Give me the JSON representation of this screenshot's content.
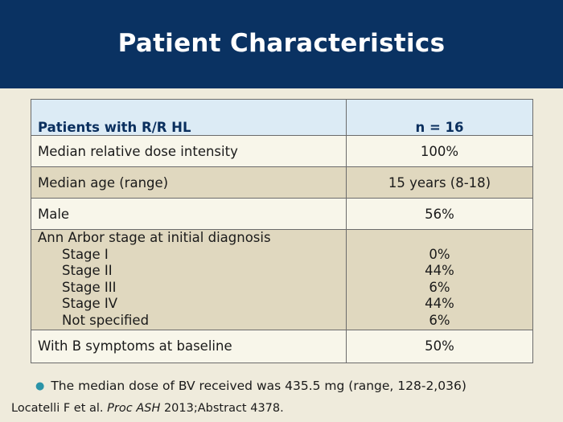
{
  "header": {
    "title": "Patient Characteristics"
  },
  "table": {
    "col_headers": [
      "Patients with R/R HL",
      "n = 16"
    ],
    "rows": [
      {
        "label": "Median relative dose intensity",
        "value": "100%"
      },
      {
        "label": "Median age (range)",
        "value": "15 years (8-18)"
      },
      {
        "label": "Male",
        "value": "56%"
      },
      {
        "label": "Ann Arbor stage at initial diagnosis",
        "subrows": [
          {
            "label": "Stage I",
            "value": "0%"
          },
          {
            "label": "Stage II",
            "value": "44%"
          },
          {
            "label": "Stage III",
            "value": "6%"
          },
          {
            "label": "Stage IV",
            "value": "44%"
          },
          {
            "label": "Not specified",
            "value": "6%"
          }
        ]
      },
      {
        "label": "With B symptoms at baseline",
        "value": "50%"
      }
    ]
  },
  "footnote": {
    "bullet": "The median dose of BV received was 435.5 mg (range, 128-2,036)",
    "citation_authors": "Locatelli F et al.",
    "citation_journal": "Proc ASH",
    "citation_rest": "2013;Abstract 4378."
  },
  "colors": {
    "header_bg": "#0a3262",
    "page_bg": "#efebdc",
    "table_header_bg": "#dcebf5",
    "row_light": "#f8f6ea",
    "row_dark": "#e0d8bf",
    "bullet": "#2b94a8"
  }
}
